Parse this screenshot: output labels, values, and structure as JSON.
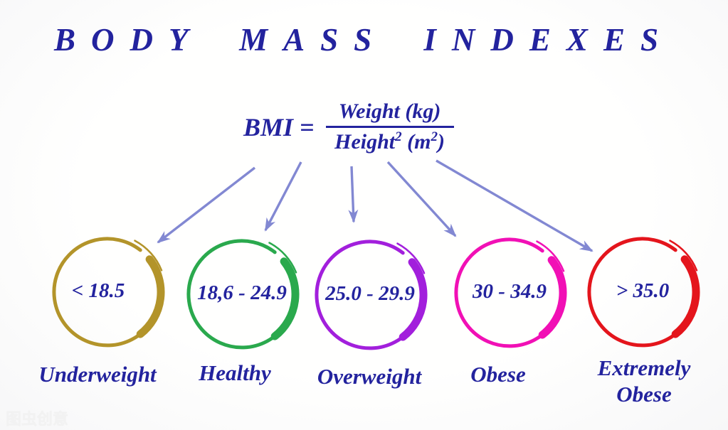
{
  "title": "BODY MASS INDEXES",
  "formula": {
    "lhs": "BMI =",
    "numerator": "Weight (kg)",
    "den_base": "Height",
    "den_sup1": "2",
    "den_mid": "(m",
    "den_sup2": "2",
    "den_end": ")"
  },
  "categories": [
    {
      "range": "< 18.5",
      "label": "Underweight",
      "color": "#b3942a"
    },
    {
      "range": "18,6 - 24.9",
      "label": "Healthy",
      "color": "#2aa94d"
    },
    {
      "range": "25.0 - 29.9",
      "label": "Overweight",
      "color": "#a21fdc"
    },
    {
      "range": "30 - 34.9",
      "label": "Obese",
      "color": "#f110b5"
    },
    {
      "range": "> 35.0",
      "label": "Extremely Obese",
      "color": "#e4151c"
    }
  ],
  "colors": {
    "text": "#23239e",
    "arrow": "#8288d2",
    "background": "#fdfdfd"
  },
  "watermark": "图虫创意"
}
